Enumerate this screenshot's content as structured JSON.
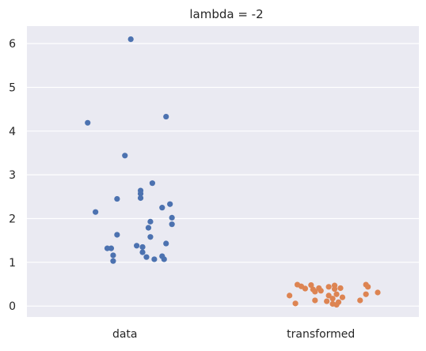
{
  "chart_data": {
    "type": "scatter",
    "title": "lambda = -2",
    "xlabel": "",
    "ylabel": "",
    "categories": [
      "data",
      "transformed"
    ],
    "ylim": [
      -0.25,
      6.4
    ],
    "yticks": [
      0,
      1,
      2,
      3,
      4,
      5,
      6
    ],
    "grid": true,
    "style": "seaborn-darkgrid strip plot",
    "colors": {
      "plot_background": "#EAEAF2",
      "grid": "#FFFFFF",
      "data": "#4C72B0",
      "transformed": "#DD8452"
    },
    "series": [
      {
        "category": "data",
        "points": [
          {
            "jitter": 0.03,
            "y": 6.1
          },
          {
            "jitter": -0.19,
            "y": 4.19
          },
          {
            "jitter": 0.21,
            "y": 4.33
          },
          {
            "jitter": 0.0,
            "y": 3.44
          },
          {
            "jitter": 0.14,
            "y": 2.81
          },
          {
            "jitter": 0.08,
            "y": 2.64
          },
          {
            "jitter": 0.08,
            "y": 2.57
          },
          {
            "jitter": -0.04,
            "y": 2.45
          },
          {
            "jitter": 0.08,
            "y": 2.47
          },
          {
            "jitter": 0.23,
            "y": 2.33
          },
          {
            "jitter": 0.19,
            "y": 2.25
          },
          {
            "jitter": -0.15,
            "y": 2.15
          },
          {
            "jitter": 0.24,
            "y": 2.02
          },
          {
            "jitter": 0.13,
            "y": 1.93
          },
          {
            "jitter": 0.24,
            "y": 1.87
          },
          {
            "jitter": 0.12,
            "y": 1.79
          },
          {
            "jitter": -0.04,
            "y": 1.63
          },
          {
            "jitter": 0.13,
            "y": 1.58
          },
          {
            "jitter": 0.21,
            "y": 1.43
          },
          {
            "jitter": 0.06,
            "y": 1.38
          },
          {
            "jitter": 0.09,
            "y": 1.35
          },
          {
            "jitter": -0.07,
            "y": 1.32
          },
          {
            "jitter": -0.09,
            "y": 1.32
          },
          {
            "jitter": 0.09,
            "y": 1.23
          },
          {
            "jitter": -0.06,
            "y": 1.16
          },
          {
            "jitter": 0.11,
            "y": 1.12
          },
          {
            "jitter": 0.19,
            "y": 1.14
          },
          {
            "jitter": 0.15,
            "y": 1.07
          },
          {
            "jitter": 0.2,
            "y": 1.07
          },
          {
            "jitter": -0.06,
            "y": 1.03
          }
        ]
      },
      {
        "category": "transformed",
        "points": [
          {
            "jitter": -0.12,
            "y": 0.49
          },
          {
            "jitter": -0.1,
            "y": 0.45
          },
          {
            "jitter": -0.05,
            "y": 0.48
          },
          {
            "jitter": 0.07,
            "y": 0.47
          },
          {
            "jitter": 0.23,
            "y": 0.49
          },
          {
            "jitter": 0.04,
            "y": 0.44
          },
          {
            "jitter": 0.24,
            "y": 0.44
          },
          {
            "jitter": -0.08,
            "y": 0.4
          },
          {
            "jitter": -0.01,
            "y": 0.41
          },
          {
            "jitter": 0.07,
            "y": 0.39
          },
          {
            "jitter": 0.1,
            "y": 0.41
          },
          {
            "jitter": -0.04,
            "y": 0.38
          },
          {
            "jitter": 0.0,
            "y": 0.35
          },
          {
            "jitter": -0.03,
            "y": 0.33
          },
          {
            "jitter": 0.29,
            "y": 0.31
          },
          {
            "jitter": 0.08,
            "y": 0.27
          },
          {
            "jitter": 0.23,
            "y": 0.27
          },
          {
            "jitter": -0.16,
            "y": 0.24
          },
          {
            "jitter": 0.04,
            "y": 0.24
          },
          {
            "jitter": 0.11,
            "y": 0.2
          },
          {
            "jitter": 0.06,
            "y": 0.17
          },
          {
            "jitter": -0.03,
            "y": 0.13
          },
          {
            "jitter": 0.2,
            "y": 0.13
          },
          {
            "jitter": 0.03,
            "y": 0.11
          },
          {
            "jitter": 0.09,
            "y": 0.09
          },
          {
            "jitter": -0.13,
            "y": 0.06
          },
          {
            "jitter": 0.06,
            "y": 0.05
          },
          {
            "jitter": 0.08,
            "y": 0.03
          }
        ]
      }
    ]
  }
}
